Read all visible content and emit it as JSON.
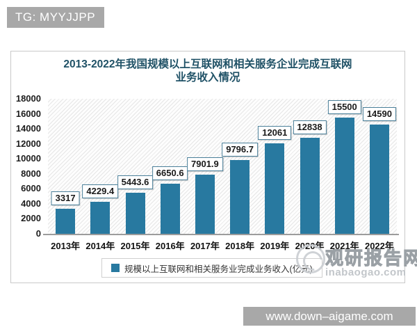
{
  "top_badge": {
    "text": "TG: MYYJJPP"
  },
  "bottom_badge": {
    "text": "www.down–aigame.com"
  },
  "watermark": {
    "site_name": "观研报告网",
    "domain": "inabaogao.com"
  },
  "chart_data": {
    "type": "bar",
    "title": "2013-2022年我国规模以上互联网和相关服务企业完成互联网业务收入情况",
    "title_line1": "2013-2022年我国规模以上互联网和相关服务企业完成互联网",
    "title_line2": "业务收入情况",
    "categories": [
      "2013年",
      "2014年",
      "2015年",
      "2016年",
      "2017年",
      "2018年",
      "2019年",
      "2020年",
      "2021年",
      "2022年"
    ],
    "values": [
      3317,
      4229.4,
      5443.6,
      6650.6,
      7901.9,
      9796.7,
      12061,
      12838,
      15500,
      14590
    ],
    "value_labels": [
      "3317",
      "4229.4",
      "5443.6",
      "6650.6",
      "7901.9",
      "9796.7",
      "12061",
      "12838",
      "15500",
      "14590"
    ],
    "legend": "规模以上互联网和相关服务业完成业务收入(亿元)",
    "legend_position": "bottom",
    "xlabel": "",
    "ylabel": "",
    "ylim": [
      0,
      18000
    ],
    "ytick_interval": 2000,
    "grid": false,
    "bar_color": "#2879a0",
    "title_color": "#1f5166"
  }
}
